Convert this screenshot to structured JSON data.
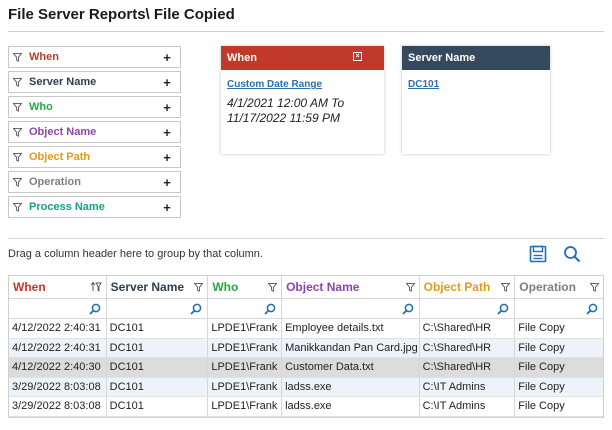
{
  "page_title": "File Server Reports\\ File Copied",
  "filters": [
    {
      "label": "When",
      "color": "#c0392b"
    },
    {
      "label": "Server Name",
      "color": "#2c3e50"
    },
    {
      "label": "Who",
      "color": "#27a844"
    },
    {
      "label": "Object Name",
      "color": "#8e44ad"
    },
    {
      "label": "Object Path",
      "color": "#e69a1a"
    },
    {
      "label": "Operation",
      "color": "#7f7f7f"
    },
    {
      "label": "Process Name",
      "color": "#16a085"
    }
  ],
  "cards": {
    "when": {
      "title": "When",
      "color": "#c0392b",
      "link": "Custom Date Range",
      "value": "4/1/2021 12:00 AM To 11/17/2022 11:59 PM"
    },
    "server": {
      "title": "Server Name",
      "color": "#34495e",
      "link": "DC101"
    }
  },
  "group_hint": "Drag a column header here to group by that column.",
  "icons": {
    "save": "save-icon",
    "search": "search-icon",
    "accent": "#1f6fb2"
  },
  "grid": {
    "columns": [
      {
        "label": "When",
        "color": "#c0392b"
      },
      {
        "label": "Server Name",
        "color": "#2c3e50"
      },
      {
        "label": "Who",
        "color": "#27a844"
      },
      {
        "label": "Object Name",
        "color": "#8e44ad"
      },
      {
        "label": "Object Path",
        "color": "#e69a1a"
      },
      {
        "label": "Operation",
        "color": "#7f7f7f"
      }
    ],
    "rows": [
      [
        "4/12/2022 2:40:31",
        "DC101",
        "LPDE1\\Frank",
        "Employee details.txt",
        "C:\\Shared\\HR",
        "File Copy"
      ],
      [
        "4/12/2022 2:40:31",
        "DC101",
        "LPDE1\\Frank",
        "Manikkandan Pan Card.jpg",
        "C:\\Shared\\HR",
        "File Copy"
      ],
      [
        "4/12/2022 2:40:30",
        "DC101",
        "LPDE1\\Frank",
        "Customer Data.txt",
        "C:\\Shared\\HR",
        "File Copy"
      ],
      [
        "3/29/2022 8:03:08",
        "DC101",
        "LPDE1\\Frank",
        "ladss.exe",
        "C:\\IT Admins",
        "File Copy"
      ],
      [
        "3/29/2022 8:03:08",
        "DC101",
        "LPDE1\\Frank",
        "ladss.exe",
        "C:\\IT Admins",
        "File Copy"
      ]
    ]
  }
}
